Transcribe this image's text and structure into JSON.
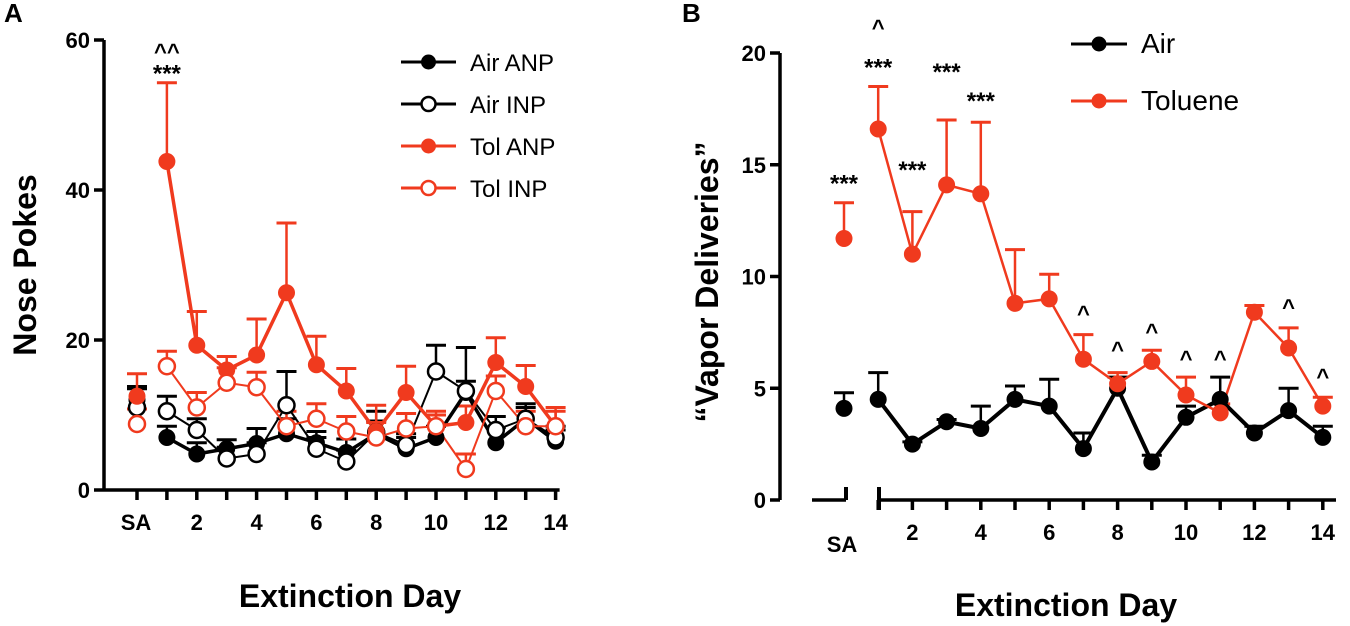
{
  "colors": {
    "air": "#000000",
    "tol": "#f03a1e"
  },
  "chart_data": [
    {
      "panel": "A",
      "type": "line",
      "xlabel": "Extinction Day",
      "ylabel": "Nose Pokes",
      "ylim": [
        0,
        60
      ],
      "yticks": [
        0,
        20,
        40,
        60
      ],
      "xticks": [
        "SA",
        "2",
        "4",
        "6",
        "8",
        "10",
        "12",
        "14"
      ],
      "x": [
        0,
        1,
        2,
        3,
        4,
        5,
        6,
        7,
        8,
        9,
        10,
        11,
        12,
        13,
        14
      ],
      "series": [
        {
          "name": "Air ANP",
          "color": "air",
          "filled": true,
          "width": 3.5,
          "values": [
            12,
            7,
            4.8,
            5.5,
            6.2,
            7.5,
            6.3,
            5,
            7.5,
            5.5,
            7,
            13,
            6.3,
            9.5,
            6.5
          ],
          "err": [
            1.8,
            1.5,
            1.5,
            1.2,
            2,
            2,
            1.5,
            1.8,
            3,
            1.5,
            1.5,
            1.5,
            2,
            2,
            1.5
          ]
        },
        {
          "name": "Air INP",
          "color": "air",
          "filled": false,
          "width": 2,
          "values": [
            11,
            10.5,
            8,
            4.2,
            4.8,
            11.3,
            5.5,
            3.8,
            7.7,
            6,
            15.8,
            13.2,
            8,
            9.5,
            7
          ],
          "err": [
            2.5,
            2,
            1.5,
            1.5,
            1.5,
            4.5,
            1.5,
            1.5,
            1.5,
            1.5,
            3.5,
            5.8,
            1.8,
            1.5,
            1.5
          ]
        },
        {
          "name": "Tol ANP",
          "color": "tol",
          "filled": true,
          "width": 3.5,
          "values": [
            12.5,
            43.8,
            19.3,
            16,
            18,
            26.3,
            16.7,
            13.2,
            7.8,
            13,
            8.5,
            9,
            17,
            13.8,
            8.5
          ],
          "err": [
            3,
            10.5,
            4.5,
            1.8,
            4.8,
            9.3,
            3.8,
            3,
            3.5,
            3.5,
            1.5,
            2.2,
            3.3,
            2.8,
            2.5
          ]
        },
        {
          "name": "Tol INP",
          "color": "tol",
          "filled": false,
          "width": 2,
          "values": [
            8.8,
            16.5,
            11,
            14.3,
            13.7,
            8.5,
            9.5,
            7.8,
            7,
            8.2,
            8.5,
            2.8,
            13.2,
            8.5,
            8.5
          ],
          "err": [
            2,
            2,
            2,
            2,
            2,
            2,
            2,
            2,
            2,
            2,
            2,
            2,
            2,
            2,
            2
          ]
        }
      ],
      "annotations": [
        {
          "text": "^^",
          "x": 1,
          "y": 57.5,
          "kind": "caret"
        },
        {
          "text": "***",
          "x": 1,
          "y": 54.5,
          "kind": "stars"
        }
      ]
    },
    {
      "panel": "B",
      "type": "line",
      "xlabel": "Extinction Day",
      "ylabel": "“Vapor Deliveries”",
      "ylim": [
        0,
        20
      ],
      "yticks": [
        0,
        5,
        10,
        15,
        20
      ],
      "xticks": [
        "SA",
        "2",
        "4",
        "6",
        "8",
        "10",
        "12",
        "14"
      ],
      "x": [
        0,
        1,
        2,
        3,
        4,
        5,
        6,
        7,
        8,
        9,
        10,
        11,
        12,
        13,
        14
      ],
      "series": [
        {
          "name": "Air",
          "color": "air",
          "filled": true,
          "width": 4,
          "values": [
            4.1,
            4.5,
            2.5,
            3.5,
            3.2,
            4.5,
            4.2,
            2.3,
            5,
            1.7,
            3.7,
            4.5,
            3,
            4,
            2.8
          ],
          "err": [
            0.7,
            1.2,
            0.1,
            0.1,
            1,
            0.6,
            1.2,
            0.7,
            0.5,
            0.3,
            0.5,
            1,
            0.3,
            1,
            0.5
          ]
        },
        {
          "name": "Toluene",
          "color": "tol",
          "filled": true,
          "width": 2.5,
          "values": [
            11.7,
            16.6,
            11,
            14.1,
            13.7,
            8.8,
            9,
            6.3,
            5.2,
            6.2,
            4.7,
            3.9,
            8.4,
            6.8,
            4.2
          ],
          "err": [
            1.6,
            1.9,
            1.9,
            2.9,
            3.2,
            2.4,
            1.1,
            1.1,
            0.5,
            0.5,
            0.8,
            0.4,
            0.3,
            0.9,
            0.4
          ]
        }
      ],
      "annotations": [
        {
          "text": "***",
          "x": 0,
          "y": 13.8,
          "kind": "stars"
        },
        {
          "text": "^",
          "x": 1,
          "y": 20.8,
          "kind": "caret"
        },
        {
          "text": "***",
          "x": 1,
          "y": 19,
          "kind": "stars"
        },
        {
          "text": "***",
          "x": 2,
          "y": 14.4,
          "kind": "stars"
        },
        {
          "text": "***",
          "x": 3,
          "y": 18.8,
          "kind": "stars"
        },
        {
          "text": "***",
          "x": 4,
          "y": 17.5,
          "kind": "stars"
        },
        {
          "text": "^",
          "x": 7,
          "y": 8,
          "kind": "caret"
        },
        {
          "text": "^",
          "x": 8,
          "y": 6.4,
          "kind": "caret"
        },
        {
          "text": "^",
          "x": 9,
          "y": 7.2,
          "kind": "caret"
        },
        {
          "text": "^",
          "x": 10,
          "y": 6,
          "kind": "caret"
        },
        {
          "text": "^",
          "x": 11,
          "y": 6,
          "kind": "caret"
        },
        {
          "text": "^",
          "x": 13,
          "y": 8.3,
          "kind": "caret"
        },
        {
          "text": "^",
          "x": 14,
          "y": 5.2,
          "kind": "caret"
        }
      ]
    }
  ]
}
